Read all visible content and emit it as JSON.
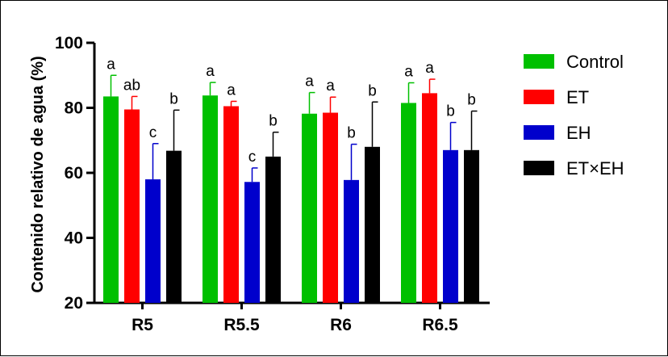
{
  "chart_data": {
    "type": "bar",
    "title": "",
    "xlabel": "",
    "ylabel": "Contenido relativo de agua (%)",
    "ylim": [
      20,
      100
    ],
    "yticks": [
      20,
      40,
      60,
      80,
      100
    ],
    "categories": [
      "R5",
      "R5.5",
      "R6",
      "R6.5"
    ],
    "grid": false,
    "legend_position": "right",
    "series": [
      {
        "name": "Control",
        "color": "#00c000",
        "values": [
          83.5,
          83.8,
          78.2,
          81.5
        ],
        "errors": [
          6.5,
          4.0,
          6.5,
          6.2
        ],
        "letters": [
          "a",
          "a",
          "a",
          "a"
        ]
      },
      {
        "name": "ET",
        "color": "#ff0000",
        "values": [
          79.5,
          80.5,
          78.5,
          84.5
        ],
        "errors": [
          4.0,
          1.5,
          4.8,
          4.3
        ],
        "letters": [
          "ab",
          "a",
          "a",
          "a"
        ]
      },
      {
        "name": "EH",
        "color": "#0000cc",
        "values": [
          58.0,
          57.2,
          57.8,
          67.0
        ],
        "errors": [
          11.0,
          4.3,
          11.0,
          8.5
        ],
        "letters": [
          "c",
          "c",
          "b",
          "b"
        ]
      },
      {
        "name": "ET×EH",
        "color": "#000000",
        "values": [
          66.8,
          65.0,
          68.0,
          67.0
        ],
        "errors": [
          12.5,
          7.5,
          13.8,
          12.0
        ],
        "letters": [
          "b",
          "b",
          "b",
          "b"
        ]
      }
    ]
  }
}
